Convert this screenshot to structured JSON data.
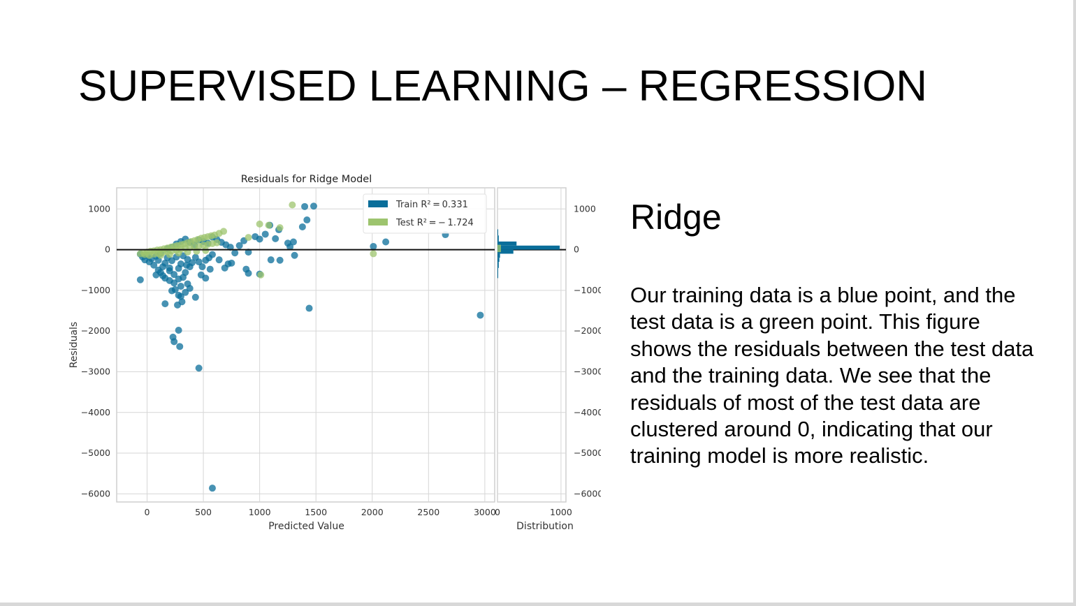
{
  "slide": {
    "title": "SUPERVISED LEARNING – REGRESSION",
    "subtitle": "Ridge",
    "body": "Our training data is a blue point, and the test data is a green point. This figure shows the residuals between the test data and the training data. We see that the residuals of most of the test data are clustered around 0, indicating that our training model is more realistic."
  },
  "colors": {
    "train": "#0a6e9a",
    "test": "#9dc46e",
    "grid": "#d6d6d6",
    "frame": "#cfcfcf"
  },
  "chart_data": {
    "type": "scatter",
    "title": "Residuals for Ridge Model",
    "xlabel": "Predicted Value",
    "ylabel": "Residuals",
    "xlim": [
      -270,
      3100
    ],
    "ylim": [
      -6200,
      1520
    ],
    "xticks": [
      0,
      500,
      1000,
      1500,
      2000,
      2500,
      3000
    ],
    "yticks": [
      1000,
      0,
      -1000,
      -2000,
      -3000,
      -4000,
      -5000,
      -6000
    ],
    "grid": true,
    "legend_position": "top-right",
    "legend": [
      {
        "label": "Train $R^2 = 0.331$",
        "text": "Train ",
        "math": "R² = 0.331"
      },
      {
        "label": "Test $R^2 = -1.724$",
        "text": "Test ",
        "math": "R² = − 1.724"
      }
    ],
    "series": [
      {
        "name": "Train",
        "points": [
          [
            -60,
            -110
          ],
          [
            -40,
            -180
          ],
          [
            -20,
            -250
          ],
          [
            0,
            -140
          ],
          [
            20,
            -300
          ],
          [
            40,
            -220
          ],
          [
            60,
            -380
          ],
          [
            80,
            -160
          ],
          [
            100,
            -260
          ],
          [
            120,
            -90
          ],
          [
            140,
            -420
          ],
          [
            160,
            -330
          ],
          [
            180,
            -200
          ],
          [
            200,
            -520
          ],
          [
            220,
            -270
          ],
          [
            240,
            -610
          ],
          [
            260,
            -180
          ],
          [
            280,
            -460
          ],
          [
            300,
            -350
          ],
          [
            320,
            -150
          ],
          [
            340,
            -560
          ],
          [
            360,
            -240
          ],
          [
            380,
            -420
          ],
          [
            400,
            -320
          ],
          [
            430,
            -190
          ],
          [
            460,
            -300
          ],
          [
            490,
            -420
          ],
          [
            520,
            -260
          ],
          [
            550,
            -200
          ],
          [
            580,
            -120
          ],
          [
            120,
            -560
          ],
          [
            160,
            -700
          ],
          [
            200,
            -760
          ],
          [
            240,
            -820
          ],
          [
            280,
            -720
          ],
          [
            320,
            -680
          ],
          [
            360,
            -840
          ],
          [
            140,
            -640
          ],
          [
            100,
            -500
          ],
          [
            80,
            -620
          ],
          [
            180,
            20
          ],
          [
            220,
            60
          ],
          [
            260,
            140
          ],
          [
            300,
            200
          ],
          [
            340,
            260
          ],
          [
            380,
            180
          ],
          [
            420,
            120
          ],
          [
            460,
            240
          ],
          [
            500,
            200
          ],
          [
            540,
            160
          ],
          [
            580,
            310
          ],
          [
            620,
            250
          ],
          [
            660,
            180
          ],
          [
            700,
            120
          ],
          [
            740,
            60
          ],
          [
            780,
            -80
          ],
          [
            820,
            100
          ],
          [
            860,
            220
          ],
          [
            900,
            -60
          ],
          [
            960,
            320
          ],
          [
            1000,
            260
          ],
          [
            1050,
            380
          ],
          [
            1090,
            600
          ],
          [
            1140,
            270
          ],
          [
            1170,
            490
          ],
          [
            1250,
            160
          ],
          [
            1270,
            70
          ],
          [
            1300,
            190
          ],
          [
            1310,
            -140
          ],
          [
            1380,
            560
          ],
          [
            1400,
            1060
          ],
          [
            1420,
            730
          ],
          [
            1480,
            1070
          ],
          [
            -60,
            -740
          ],
          [
            160,
            -1330
          ],
          [
            300,
            -1150
          ],
          [
            280,
            -1120
          ],
          [
            310,
            -1280
          ],
          [
            430,
            -1170
          ],
          [
            270,
            -1360
          ],
          [
            220,
            -1010
          ],
          [
            230,
            -2150
          ],
          [
            240,
            -2260
          ],
          [
            290,
            -2380
          ],
          [
            280,
            -1980
          ],
          [
            460,
            -2910
          ],
          [
            580,
            -5860
          ],
          [
            1440,
            -1440
          ],
          [
            2960,
            -1610
          ],
          [
            750,
            -330
          ],
          [
            880,
            -480
          ],
          [
            900,
            -580
          ],
          [
            2010,
            80
          ],
          [
            2120,
            190
          ],
          [
            2650,
            370
          ],
          [
            1000,
            -600
          ],
          [
            1100,
            -250
          ],
          [
            1180,
            -260
          ],
          [
            690,
            -450
          ],
          [
            720,
            -350
          ],
          [
            640,
            -250
          ],
          [
            300,
            -900
          ],
          [
            340,
            -1050
          ],
          [
            380,
            -950
          ],
          [
            250,
            -980
          ],
          [
            200,
            -450
          ],
          [
            350,
            -380
          ],
          [
            480,
            -620
          ],
          [
            520,
            -700
          ],
          [
            560,
            -480
          ]
        ]
      },
      {
        "name": "Test",
        "points": [
          [
            -60,
            -100
          ],
          [
            -30,
            -80
          ],
          [
            0,
            -60
          ],
          [
            30,
            -40
          ],
          [
            60,
            -30
          ],
          [
            90,
            -10
          ],
          [
            120,
            0
          ],
          [
            150,
            20
          ],
          [
            180,
            40
          ],
          [
            210,
            60
          ],
          [
            240,
            80
          ],
          [
            270,
            100
          ],
          [
            300,
            120
          ],
          [
            330,
            140
          ],
          [
            360,
            170
          ],
          [
            390,
            200
          ],
          [
            420,
            220
          ],
          [
            450,
            250
          ],
          [
            480,
            280
          ],
          [
            510,
            300
          ],
          [
            540,
            320
          ],
          [
            570,
            340
          ],
          [
            600,
            360
          ],
          [
            640,
            400
          ],
          [
            680,
            450
          ],
          [
            -20,
            -120
          ],
          [
            20,
            -140
          ],
          [
            60,
            -110
          ],
          [
            100,
            -90
          ],
          [
            140,
            -70
          ],
          [
            180,
            -50
          ],
          [
            220,
            -30
          ],
          [
            260,
            -10
          ],
          [
            300,
            10
          ],
          [
            340,
            30
          ],
          [
            380,
            50
          ],
          [
            420,
            70
          ],
          [
            460,
            90
          ],
          [
            500,
            110
          ],
          [
            540,
            130
          ],
          [
            580,
            150
          ],
          [
            620,
            170
          ],
          [
            120,
            -140
          ],
          [
            200,
            -120
          ],
          [
            280,
            -80
          ],
          [
            360,
            -60
          ],
          [
            440,
            -40
          ],
          [
            520,
            -20
          ],
          [
            900,
            300
          ],
          [
            1000,
            630
          ],
          [
            1080,
            600
          ],
          [
            1180,
            540
          ],
          [
            1290,
            1100
          ],
          [
            2010,
            -100
          ],
          [
            1010,
            -620
          ]
        ]
      }
    ],
    "distribution": {
      "xlabel": "Distribution",
      "xlim": [
        0,
        1100
      ],
      "xticks": [
        0,
        1000
      ],
      "bins": [
        {
          "y0": 500,
          "y1": 350,
          "count": 10
        },
        {
          "y0": 350,
          "y1": 200,
          "count": 20
        },
        {
          "y0": 200,
          "y1": 100,
          "count": 300
        },
        {
          "y0": 100,
          "y1": 0,
          "count": 980
        },
        {
          "y0": 0,
          "y1": -100,
          "count": 250
        },
        {
          "y0": -100,
          "y1": -200,
          "count": 40
        },
        {
          "y0": -200,
          "y1": -300,
          "count": 30
        },
        {
          "y0": -300,
          "y1": -450,
          "count": 20
        },
        {
          "y0": -450,
          "y1": -700,
          "count": 10
        }
      ]
    }
  }
}
